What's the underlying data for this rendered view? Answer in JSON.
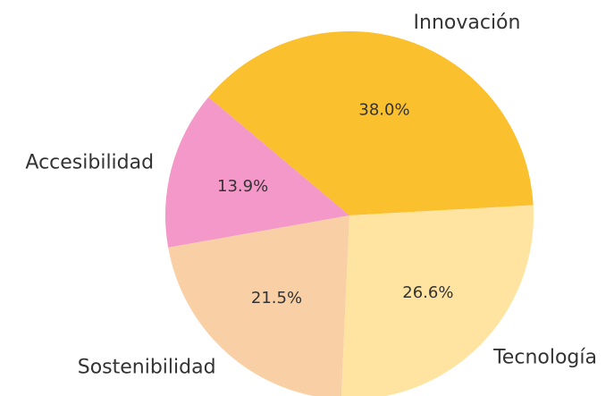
{
  "chart_data": {
    "type": "pie",
    "categories": [
      "Innovación",
      "Accesibilidad",
      "Sostenibilidad",
      "Tecnología"
    ],
    "values": [
      38.0,
      13.9,
      21.5,
      26.6
    ],
    "value_labels": [
      "38.0%",
      "13.9%",
      "21.5%",
      "26.6%"
    ],
    "colors": [
      "#fbc02d",
      "#f497c9",
      "#f9d0a5",
      "#ffe3a0"
    ]
  }
}
